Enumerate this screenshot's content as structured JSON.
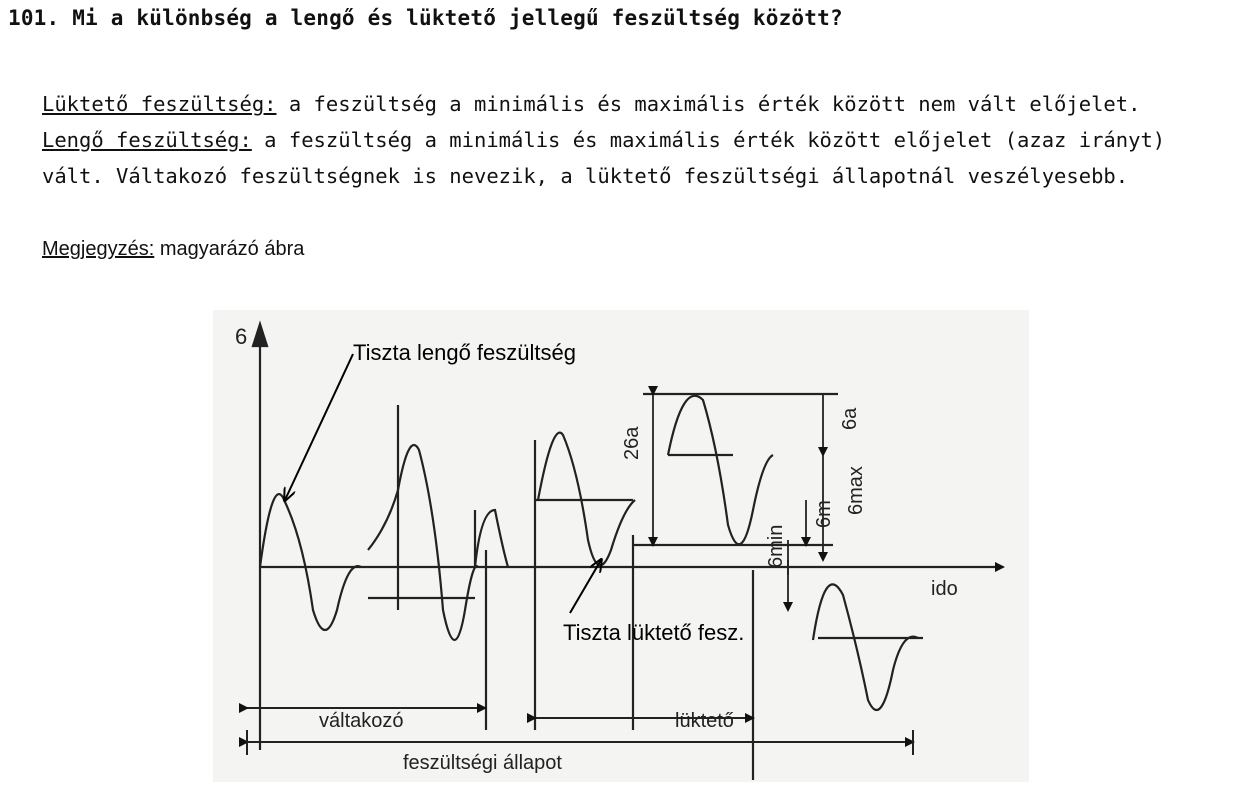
{
  "question": {
    "title": "101. Mi a különbség a lengő és lüktető jellegű feszültség között?"
  },
  "answer": {
    "pulsating_term": "Lüktető feszültség:",
    "pulsating_text": " a feszültség a minimális és maximális érték között nem vált előjelet.",
    "alternating_term": "Lengő feszültség:",
    "alternating_text": " a feszültség a minimális és maximális érték között előjelet (azaz irányt) vált. Váltakozó feszültségnek is nevezik, a lüktető feszültségi állapotnál veszélyesebb."
  },
  "note": {
    "label": "Megjegyzés:",
    "text": " magyarázó ábra"
  },
  "figure": {
    "axis_y_symbol": "6",
    "axis_x_label": "ido",
    "annotation_alternating": "Tiszta lengő feszültség",
    "annotation_pulsating": "Tiszta lüktető fesz.",
    "range_label_alternating": "váltakozó",
    "range_label_pulsating": "lüktető",
    "range_label_state": "feszültségi állapot",
    "dim_2sa": "26a",
    "dim_sa": "6a",
    "dim_smax": "6max",
    "dim_sm": "6m",
    "dim_smin": "6min"
  }
}
